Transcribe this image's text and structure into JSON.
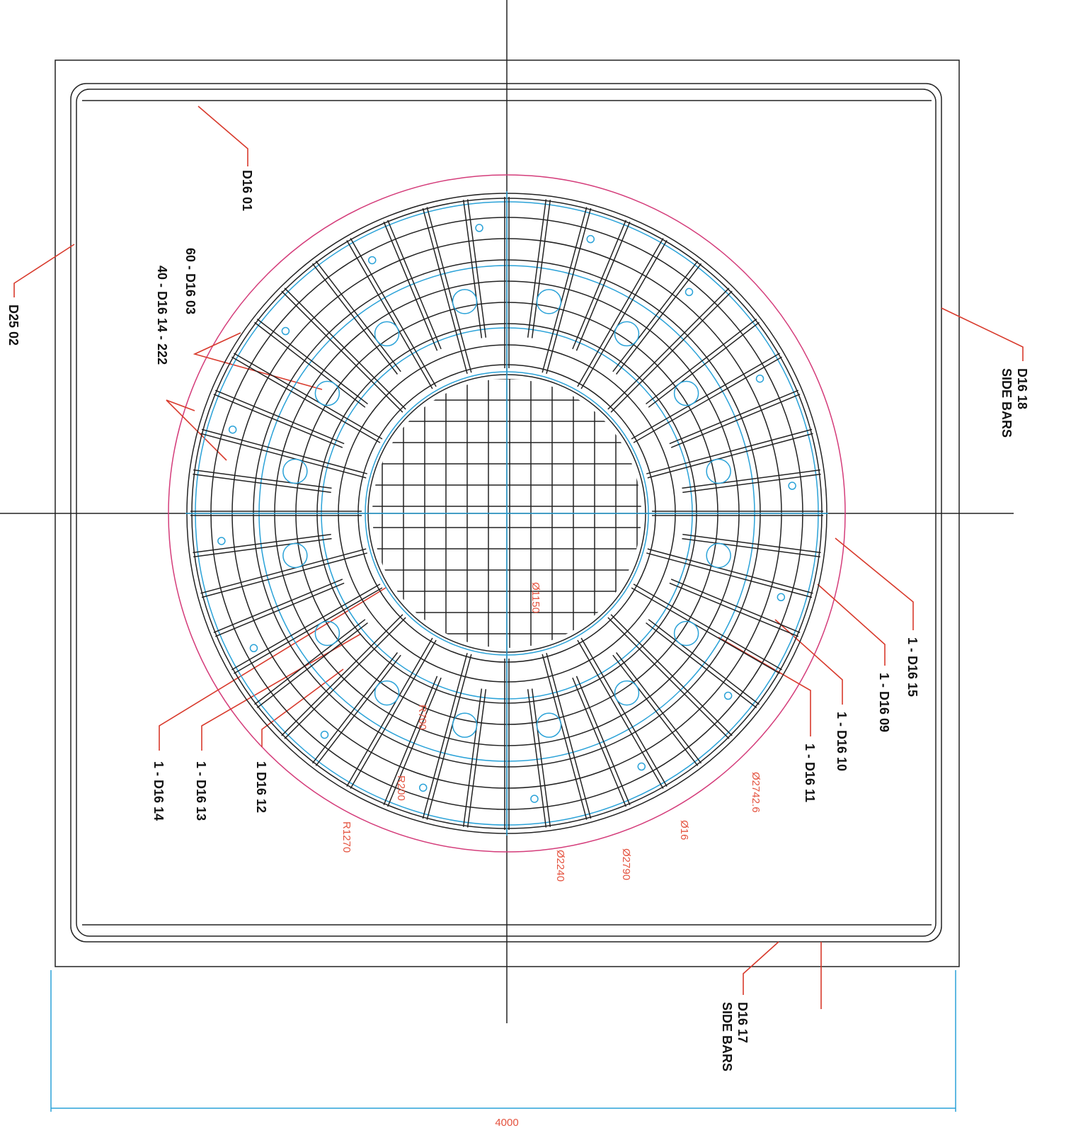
{
  "labels": {
    "d16_01": "D16 01",
    "d25_02": "D25 02",
    "d16_03": "60 - D16 03",
    "d16_14_222": "40 - D16 14 - 222",
    "d16_18": "D16 18",
    "d16_18_note": "SIDE BARS",
    "d16_15": "1 - D16 15",
    "d16_09": "1 - D16 09",
    "d16_10": "1 - D16 10",
    "d16_11": "1 - D16 11",
    "d16_12": "1 D16 12",
    "d16_13": "1 - D16 13",
    "d16_14": "1 - D16 14",
    "d16_17": "D16 17",
    "d16_17_note": "SIDE BARS"
  },
  "dimensions": {
    "width": "4000",
    "d1150": "Ø1150",
    "r700": "R700",
    "r200": "R200",
    "r1270": "R1270",
    "d2240": "Ø2240",
    "d2790": "Ø2790",
    "d16": "Ø16",
    "d2742": "Ø2742.6"
  }
}
